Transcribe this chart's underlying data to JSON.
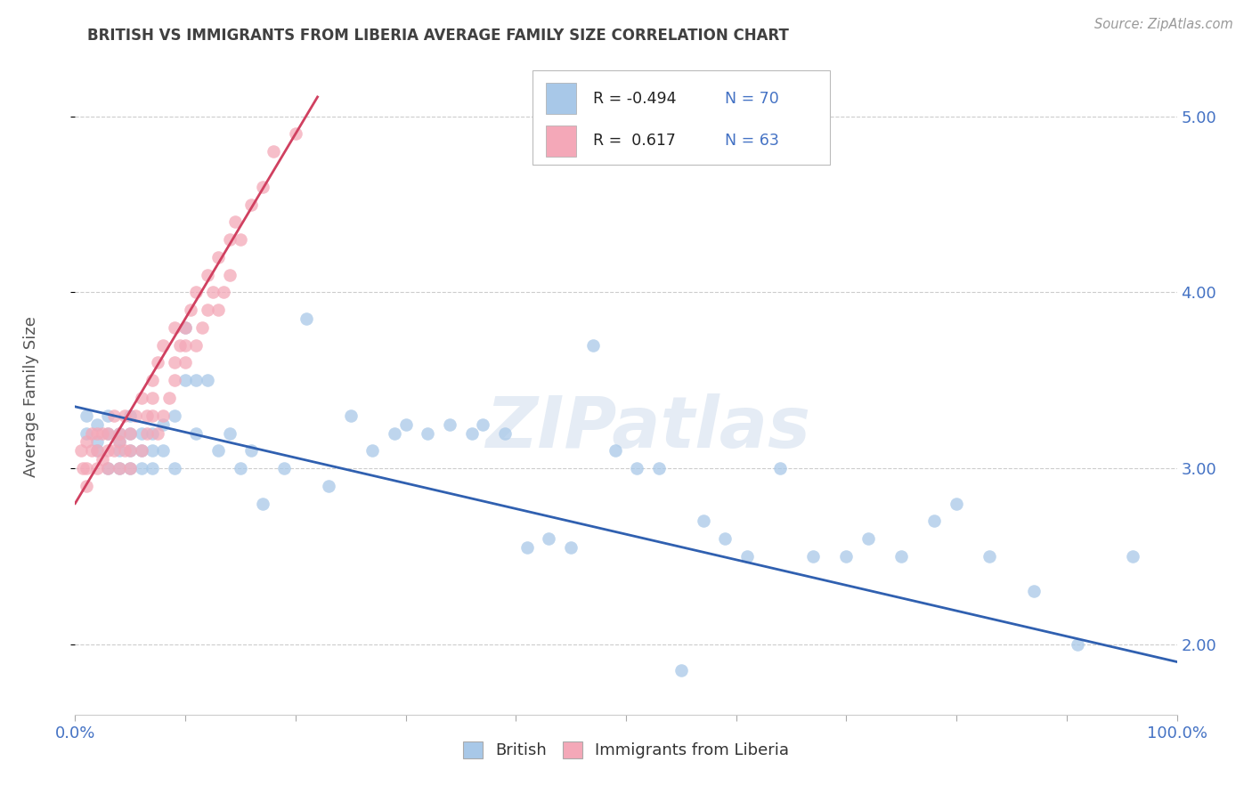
{
  "title": "BRITISH VS IMMIGRANTS FROM LIBERIA AVERAGE FAMILY SIZE CORRELATION CHART",
  "source_text": "Source: ZipAtlas.com",
  "ylabel": "Average Family Size",
  "xlim": [
    0,
    1.0
  ],
  "ylim": [
    1.6,
    5.3
  ],
  "ytick_values": [
    2.0,
    3.0,
    4.0,
    5.0
  ],
  "ytick_labels": [
    "2.00",
    "3.00",
    "4.00",
    "5.00"
  ],
  "watermark": "ZIPatlas",
  "british_color": "#a8c8e8",
  "liberia_color": "#f4a8b8",
  "british_line_color": "#3060b0",
  "liberia_line_color": "#d04060",
  "title_color": "#404040",
  "axis_color": "#4472c4",
  "tick_color": "#4472c4",
  "source_color": "#999999",
  "ylabel_color": "#555555",
  "british_x": [
    0.01,
    0.01,
    0.02,
    0.02,
    0.02,
    0.03,
    0.03,
    0.03,
    0.04,
    0.04,
    0.04,
    0.04,
    0.05,
    0.05,
    0.05,
    0.05,
    0.06,
    0.06,
    0.06,
    0.07,
    0.07,
    0.07,
    0.08,
    0.08,
    0.09,
    0.09,
    0.1,
    0.1,
    0.11,
    0.11,
    0.12,
    0.13,
    0.14,
    0.15,
    0.16,
    0.17,
    0.19,
    0.21,
    0.23,
    0.25,
    0.27,
    0.29,
    0.3,
    0.32,
    0.34,
    0.36,
    0.37,
    0.39,
    0.41,
    0.43,
    0.45,
    0.47,
    0.49,
    0.51,
    0.53,
    0.55,
    0.57,
    0.59,
    0.61,
    0.64,
    0.67,
    0.7,
    0.72,
    0.75,
    0.78,
    0.8,
    0.83,
    0.87,
    0.91,
    0.96
  ],
  "british_y": [
    3.2,
    3.3,
    3.1,
    3.25,
    3.15,
    3.0,
    3.2,
    3.3,
    3.1,
    3.0,
    3.2,
    3.15,
    3.1,
    3.0,
    3.2,
    3.3,
    3.0,
    3.2,
    3.1,
    3.2,
    3.1,
    3.0,
    3.25,
    3.1,
    3.3,
    3.0,
    3.8,
    3.5,
    3.5,
    3.2,
    3.5,
    3.1,
    3.2,
    3.0,
    3.1,
    2.8,
    3.0,
    3.85,
    2.9,
    3.3,
    3.1,
    3.2,
    3.25,
    3.2,
    3.25,
    3.2,
    3.25,
    3.2,
    2.55,
    2.6,
    2.55,
    3.7,
    3.1,
    3.0,
    3.0,
    1.85,
    2.7,
    2.6,
    2.5,
    3.0,
    2.5,
    2.5,
    2.6,
    2.5,
    2.7,
    2.8,
    2.5,
    2.3,
    2.0,
    2.5
  ],
  "liberia_x": [
    0.005,
    0.007,
    0.01,
    0.01,
    0.01,
    0.015,
    0.015,
    0.02,
    0.02,
    0.02,
    0.025,
    0.025,
    0.03,
    0.03,
    0.03,
    0.035,
    0.035,
    0.04,
    0.04,
    0.04,
    0.045,
    0.045,
    0.05,
    0.05,
    0.05,
    0.055,
    0.06,
    0.06,
    0.065,
    0.065,
    0.07,
    0.07,
    0.07,
    0.075,
    0.075,
    0.08,
    0.08,
    0.085,
    0.09,
    0.09,
    0.09,
    0.095,
    0.1,
    0.1,
    0.1,
    0.105,
    0.11,
    0.11,
    0.115,
    0.12,
    0.12,
    0.125,
    0.13,
    0.13,
    0.135,
    0.14,
    0.14,
    0.145,
    0.15,
    0.16,
    0.17,
    0.18,
    0.2
  ],
  "liberia_y": [
    3.1,
    3.0,
    2.9,
    3.0,
    3.15,
    3.1,
    3.2,
    3.0,
    3.1,
    3.2,
    3.05,
    3.2,
    3.0,
    3.1,
    3.2,
    3.1,
    3.3,
    3.0,
    3.15,
    3.2,
    3.1,
    3.3,
    3.0,
    3.1,
    3.2,
    3.3,
    3.1,
    3.4,
    3.2,
    3.3,
    3.3,
    3.4,
    3.5,
    3.2,
    3.6,
    3.3,
    3.7,
    3.4,
    3.5,
    3.6,
    3.8,
    3.7,
    3.6,
    3.7,
    3.8,
    3.9,
    3.7,
    4.0,
    3.8,
    3.9,
    4.1,
    4.0,
    3.9,
    4.2,
    4.0,
    4.3,
    4.1,
    4.4,
    4.3,
    4.5,
    4.6,
    4.8,
    4.9
  ],
  "liberia_trend_x": [
    0.0,
    0.22
  ],
  "liberia_trend_intercept": 2.8,
  "liberia_trend_slope": 10.5,
  "british_trend_x0": 0.0,
  "british_trend_x1": 1.0,
  "british_trend_y0": 3.35,
  "british_trend_y1": 1.9
}
